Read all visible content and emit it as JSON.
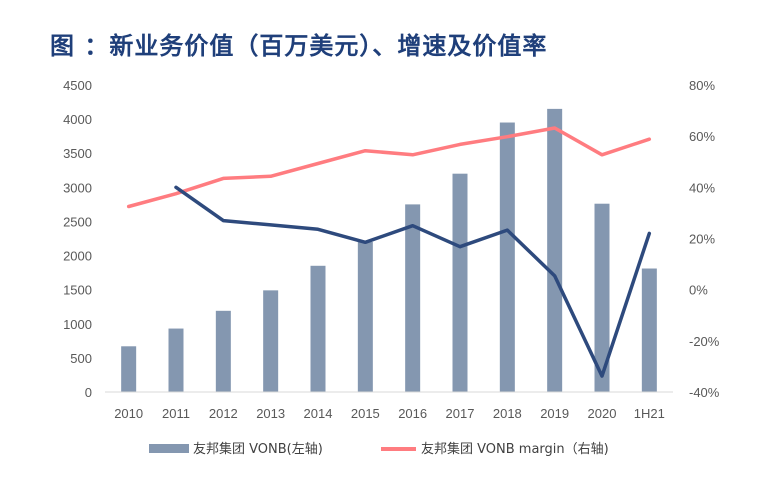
{
  "title": "图 ：新业务价值（百万美元）、增速及价值率",
  "chart_data": {
    "type": "bar",
    "title": "图 ：新业务价值（百万美元）、增速及价值率",
    "categories": [
      "2010",
      "2011",
      "2012",
      "2013",
      "2014",
      "2015",
      "2016",
      "2017",
      "2018",
      "2019",
      "2020",
      "1H21"
    ],
    "left_axis": {
      "min": 0,
      "max": 4500,
      "step": 500,
      "ticks": [
        "0",
        "500",
        "1000",
        "1500",
        "2000",
        "2500",
        "3000",
        "3500",
        "4000",
        "4500"
      ]
    },
    "right_axis": {
      "min": -40,
      "max": 80,
      "step": 20,
      "ticks": [
        "-40%",
        "-20%",
        "0%",
        "20%",
        "40%",
        "60%",
        "80%"
      ]
    },
    "series": [
      {
        "name": "友邦集团 VONB(左轴)",
        "type": "bar",
        "axis": "left",
        "color": "#8497b0",
        "values": [
          670,
          930,
          1190,
          1490,
          1850,
          2200,
          2750,
          3200,
          3950,
          4150,
          2760,
          1810
        ]
      },
      {
        "name": "友邦集团 VONB margin（右轴)",
        "type": "line",
        "axis": "right",
        "color": "#ff7c80",
        "values": [
          32.5,
          37.5,
          43.5,
          44.3,
          49.3,
          54.3,
          52.7,
          56.8,
          59.8,
          63.2,
          52.7,
          58.8
        ]
      },
      {
        "name": "growth",
        "type": "line",
        "axis": "right",
        "color": "#2e4a7d",
        "in_legend": false,
        "values": [
          null,
          40,
          27,
          25.3,
          23.6,
          18.5,
          25,
          16.8,
          23.3,
          5.4,
          -33.8,
          22
        ]
      }
    ]
  },
  "legend": {
    "bar_label": "友邦集团 VONB(左轴)",
    "line_label": "友邦集团 VONB margin（右轴)"
  }
}
